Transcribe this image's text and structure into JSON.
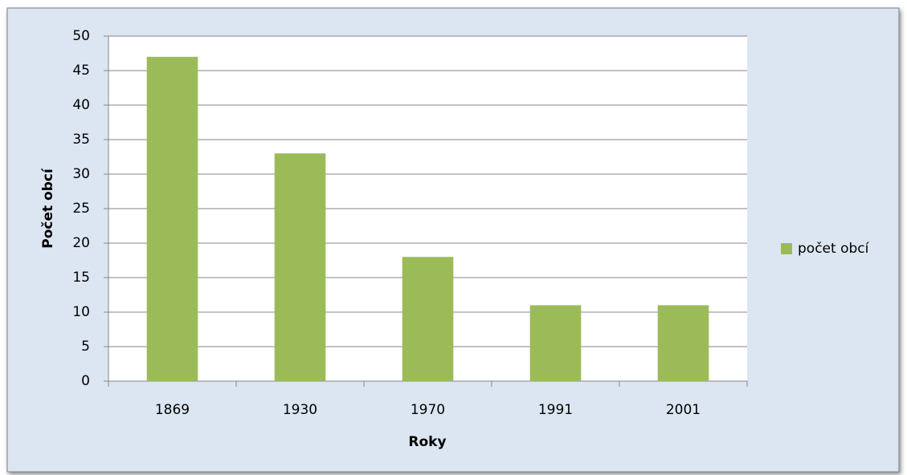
{
  "chart_data": {
    "type": "bar",
    "x_label": "Roky",
    "y_label": "Počet obcí",
    "categories": [
      "1869",
      "1930",
      "1970",
      "1991",
      "2001"
    ],
    "series": [
      {
        "name": "počet obcí",
        "color": "#9bbb59",
        "values": [
          47,
          33,
          18,
          11,
          11
        ]
      }
    ],
    "ylim": [
      0,
      50
    ],
    "yticks": [
      0,
      5,
      10,
      15,
      20,
      25,
      30,
      35,
      40,
      45,
      50
    ],
    "grid": true,
    "legend": "right"
  }
}
